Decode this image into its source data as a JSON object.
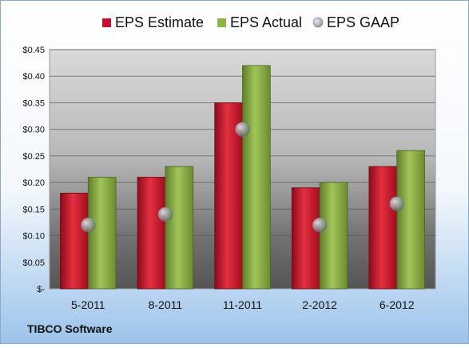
{
  "footer_label": "TIBCO Software",
  "colors": {
    "estimate": "#c8102e",
    "actual": "#8fb347",
    "gaap": "#9aa3ab"
  },
  "legend": {
    "items": [
      {
        "label": "EPS Estimate",
        "marker": "square",
        "color": "#c8102e"
      },
      {
        "label": "EPS Actual",
        "marker": "square",
        "color": "#8fb347"
      },
      {
        "label": "EPS GAAP",
        "marker": "circle",
        "color": "#9aa3ab"
      }
    ]
  },
  "chart_data": {
    "type": "bar",
    "categories": [
      "5-2011",
      "8-2011",
      "11-2011",
      "2-2012",
      "6-2012"
    ],
    "series": [
      {
        "name": "EPS Estimate",
        "kind": "bar",
        "values": [
          0.18,
          0.21,
          0.35,
          0.19,
          0.23
        ]
      },
      {
        "name": "EPS Actual",
        "kind": "bar",
        "values": [
          0.21,
          0.23,
          0.42,
          0.2,
          0.26
        ]
      },
      {
        "name": "EPS GAAP",
        "kind": "marker",
        "values": [
          0.12,
          0.14,
          0.3,
          0.12,
          0.16
        ]
      }
    ],
    "ylim": [
      0,
      0.45
    ],
    "yticks": [
      0,
      0.05,
      0.1,
      0.15,
      0.2,
      0.25,
      0.3,
      0.35,
      0.4,
      0.45
    ],
    "ytick_labels": [
      "$-",
      "$0.05",
      "$0.10",
      "$0.15",
      "$0.20",
      "$0.25",
      "$0.30",
      "$0.35",
      "$0.40",
      "$0.45"
    ],
    "grid": true,
    "legend_position": "top"
  }
}
